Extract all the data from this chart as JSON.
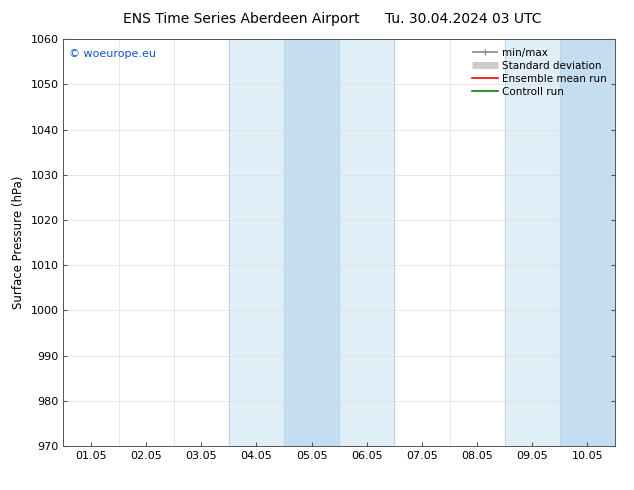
{
  "title_left": "ENS Time Series Aberdeen Airport",
  "title_right": "Tu. 30.04.2024 03 UTC",
  "ylabel": "Surface Pressure (hPa)",
  "ylim": [
    970,
    1060
  ],
  "yticks": [
    970,
    980,
    990,
    1000,
    1010,
    1020,
    1030,
    1040,
    1050,
    1060
  ],
  "xlim": [
    0.0,
    10.0
  ],
  "xtick_labels": [
    "01.05",
    "02.05",
    "03.05",
    "04.05",
    "05.05",
    "06.05",
    "07.05",
    "08.05",
    "09.05",
    "10.05"
  ],
  "xtick_positions": [
    0.5,
    1.5,
    2.5,
    3.5,
    4.5,
    5.5,
    6.5,
    7.5,
    8.5,
    9.5
  ],
  "shaded_band1_x0": 3.0,
  "shaded_band1_x1": 6.0,
  "shaded_band2_x0": 8.0,
  "shaded_band2_x1": 10.0,
  "inner_band1_x0": 4.0,
  "inner_band1_x1": 5.0,
  "inner_band2_x0": 9.0,
  "inner_band2_x1": 10.0,
  "band_color_outer": "#e0eef8",
  "band_color_inner": "#c5ddf0",
  "band_line_color": "#b8d4e8",
  "watermark": "© woeurope.eu",
  "watermark_color": "#1155cc",
  "legend_entries": [
    {
      "label": "min/max",
      "color": "#888888",
      "lw": 1.2
    },
    {
      "label": "Standard deviation",
      "color": "#cccccc",
      "lw": 5
    },
    {
      "label": "Ensemble mean run",
      "color": "#ff0000",
      "lw": 1.2
    },
    {
      "label": "Controll run",
      "color": "#008800",
      "lw": 1.2
    }
  ],
  "bg_color": "#ffffff",
  "plot_bg_color": "#ffffff",
  "grid_color": "#dddddd",
  "title_fontsize": 10,
  "tick_fontsize": 8,
  "ylabel_fontsize": 8.5,
  "legend_fontsize": 7.5,
  "watermark_fontsize": 8
}
